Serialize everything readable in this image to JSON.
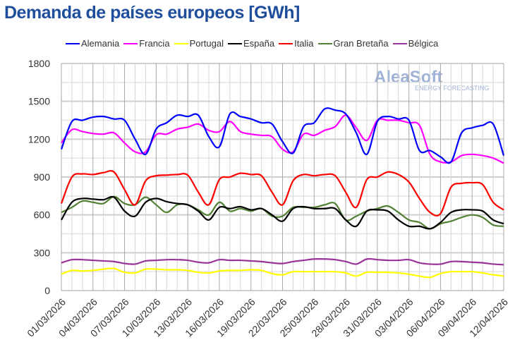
{
  "title": "Demanda de países europeos [GWh]",
  "logo": {
    "name": "AleaSoft",
    "tagline": "ENERGY FORECASTING"
  },
  "chart_data": {
    "type": "line",
    "title": "Demanda de países europeos [GWh]",
    "xlabel": "",
    "ylabel": "",
    "ylim": [
      0,
      1800
    ],
    "yticks": [
      0,
      300,
      600,
      900,
      1200,
      1500,
      1800
    ],
    "x_tick_labels": [
      "01/03/2026",
      "04/03/2026",
      "07/03/2026",
      "10/03/2026",
      "13/03/2026",
      "16/03/2026",
      "19/03/2026",
      "22/03/2026",
      "25/03/2026",
      "28/03/2026",
      "31/03/2026",
      "03/04/2026",
      "06/04/2026",
      "09/04/2026",
      "12/04/2026"
    ],
    "x_start": "01/03/2026",
    "x_end": "12/04/2026",
    "days": 43,
    "grid": true,
    "legend": "top",
    "series": [
      {
        "name": "Alemania",
        "color": "#0000ff",
        "values": [
          1120,
          1340,
          1350,
          1375,
          1380,
          1360,
          1350,
          1200,
          1080,
          1280,
          1330,
          1390,
          1380,
          1390,
          1220,
          1140,
          1400,
          1380,
          1360,
          1330,
          1320,
          1180,
          1090,
          1300,
          1330,
          1440,
          1430,
          1400,
          1250,
          1080,
          1340,
          1380,
          1360,
          1350,
          1110,
          1110,
          1060,
          1020,
          1250,
          1290,
          1310,
          1320,
          1070
        ]
      },
      {
        "name": "Francia",
        "color": "#ff00ff",
        "values": [
          1170,
          1275,
          1260,
          1245,
          1240,
          1250,
          1170,
          1100,
          1100,
          1235,
          1240,
          1280,
          1295,
          1320,
          1270,
          1260,
          1340,
          1260,
          1240,
          1230,
          1220,
          1120,
          1100,
          1240,
          1230,
          1270,
          1300,
          1390,
          1290,
          1190,
          1350,
          1350,
          1350,
          1330,
          1310,
          1080,
          1020,
          1020,
          1070,
          1080,
          1070,
          1050,
          1010
        ]
      },
      {
        "name": "Portugal",
        "color": "#ffff00",
        "values": [
          130,
          160,
          155,
          160,
          170,
          175,
          145,
          140,
          170,
          170,
          165,
          165,
          160,
          145,
          140,
          155,
          160,
          160,
          165,
          160,
          135,
          125,
          150,
          150,
          150,
          150,
          150,
          140,
          115,
          145,
          145,
          145,
          140,
          130,
          115,
          105,
          135,
          150,
          150,
          150,
          140,
          125,
          115
        ]
      },
      {
        "name": "España",
        "color": "#000000",
        "values": [
          560,
          700,
          730,
          725,
          720,
          740,
          630,
          590,
          700,
          730,
          705,
          690,
          680,
          630,
          560,
          660,
          650,
          665,
          640,
          650,
          600,
          550,
          650,
          665,
          650,
          650,
          650,
          560,
          510,
          630,
          640,
          630,
          560,
          510,
          510,
          490,
          540,
          620,
          640,
          640,
          630,
          560,
          530
        ]
      },
      {
        "name": "Italia",
        "color": "#ff0000",
        "values": [
          690,
          900,
          925,
          920,
          935,
          940,
          800,
          680,
          870,
          910,
          915,
          920,
          915,
          780,
          680,
          880,
          900,
          930,
          920,
          910,
          780,
          680,
          870,
          920,
          910,
          920,
          910,
          780,
          660,
          880,
          900,
          940,
          920,
          860,
          730,
          620,
          610,
          820,
          850,
          855,
          840,
          700,
          640
        ]
      },
      {
        "name": "Gran Bretaña",
        "color": "#538135",
        "values": [
          620,
          660,
          710,
          700,
          690,
          745,
          690,
          680,
          740,
          680,
          620,
          680,
          680,
          640,
          600,
          700,
          630,
          650,
          630,
          650,
          590,
          590,
          660,
          660,
          660,
          680,
          690,
          560,
          590,
          630,
          650,
          670,
          620,
          560,
          540,
          490,
          530,
          550,
          580,
          600,
          580,
          520,
          510
        ]
      },
      {
        "name": "Bélgica",
        "color": "#993399",
        "values": [
          220,
          245,
          245,
          240,
          235,
          230,
          215,
          210,
          235,
          240,
          245,
          245,
          240,
          225,
          220,
          245,
          240,
          240,
          235,
          230,
          220,
          215,
          230,
          240,
          250,
          250,
          245,
          230,
          210,
          250,
          245,
          240,
          240,
          245,
          220,
          210,
          210,
          230,
          230,
          225,
          220,
          210,
          205
        ]
      }
    ]
  }
}
